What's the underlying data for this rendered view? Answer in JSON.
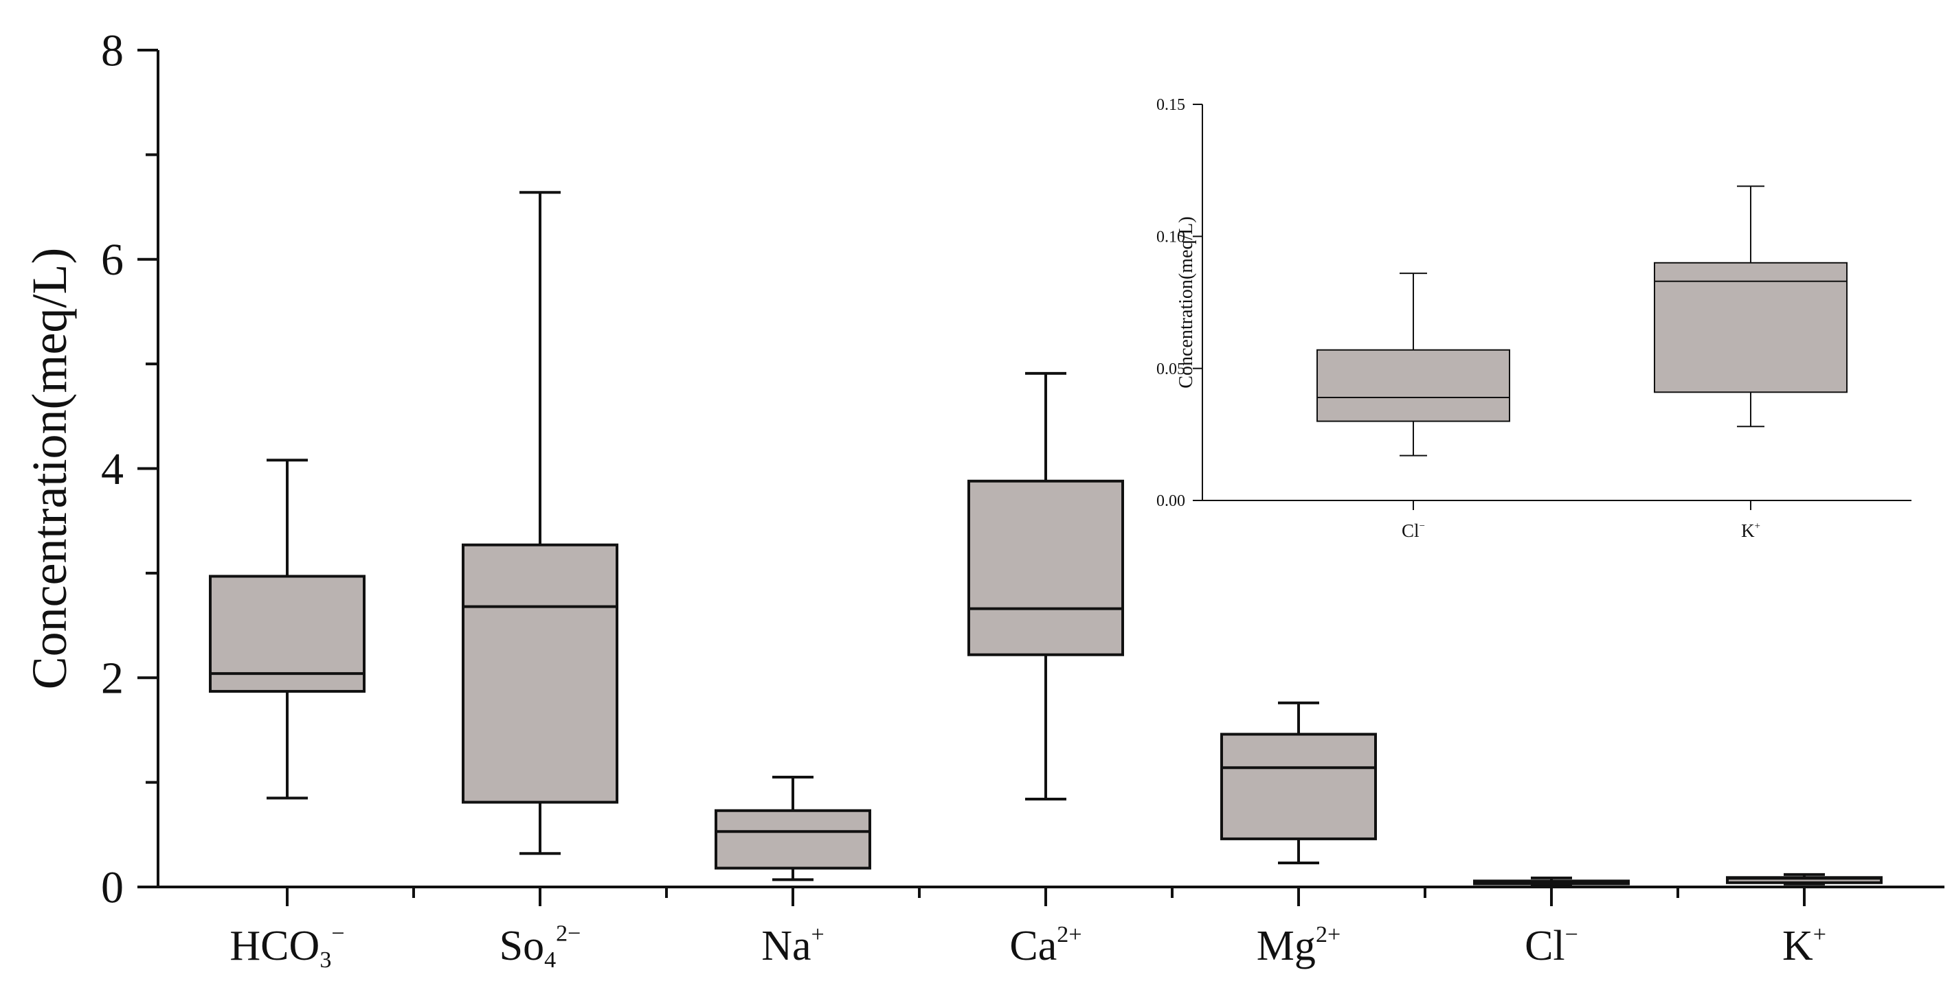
{
  "chart_data": [
    {
      "id": "main",
      "type": "box",
      "ylabel": "Concentration(meq/L)",
      "ylim": [
        0,
        8
      ],
      "y_ticks": [
        0,
        2,
        4,
        6,
        8
      ],
      "y_minor_ticks": [
        1,
        3,
        5,
        7
      ],
      "grid": false,
      "box_fill": "#bab3b1",
      "line_color": "#111111",
      "categories": [
        {
          "base": "HCO",
          "sub": "3",
          "sup": "−",
          "min": 0.85,
          "q1": 1.87,
          "median": 2.04,
          "q3": 2.97,
          "max": 4.08
        },
        {
          "base": "So",
          "sub": "4",
          "sup": "2−",
          "min": 0.32,
          "q1": 0.81,
          "median": 2.68,
          "q3": 3.27,
          "max": 6.64
        },
        {
          "base": "Na",
          "sub": "",
          "sup": "+",
          "min": 0.07,
          "q1": 0.18,
          "median": 0.53,
          "q3": 0.73,
          "max": 1.05
        },
        {
          "base": "Ca",
          "sub": "",
          "sup": "2+",
          "min": 0.84,
          "q1": 2.22,
          "median": 2.66,
          "q3": 3.88,
          "max": 4.91
        },
        {
          "base": "Mg",
          "sub": "",
          "sup": "2+",
          "min": 0.23,
          "q1": 0.46,
          "median": 1.14,
          "q3": 1.46,
          "max": 1.76
        },
        {
          "base": "Cl",
          "sub": "",
          "sup": "−",
          "min": 0.017,
          "q1": 0.03,
          "median": 0.039,
          "q3": 0.057,
          "max": 0.086
        },
        {
          "base": "K",
          "sub": "",
          "sup": "+",
          "min": 0.028,
          "q1": 0.041,
          "median": 0.083,
          "q3": 0.09,
          "max": 0.119
        }
      ]
    },
    {
      "id": "inset",
      "type": "box",
      "ylabel": "Concentration(meq/L)",
      "ylim": [
        0,
        0.15
      ],
      "y_ticks": [
        "0.00",
        "0.05",
        "0.10",
        "0.15"
      ],
      "grid": false,
      "box_fill": "#bab3b1",
      "line_color": "#111111",
      "categories": [
        {
          "base": "Cl",
          "sub": "",
          "sup": "−",
          "min": 0.017,
          "q1": 0.03,
          "median": 0.039,
          "q3": 0.057,
          "max": 0.086
        },
        {
          "base": "K",
          "sub": "",
          "sup": "+",
          "min": 0.028,
          "q1": 0.041,
          "median": 0.083,
          "q3": 0.09,
          "max": 0.119
        }
      ]
    }
  ]
}
